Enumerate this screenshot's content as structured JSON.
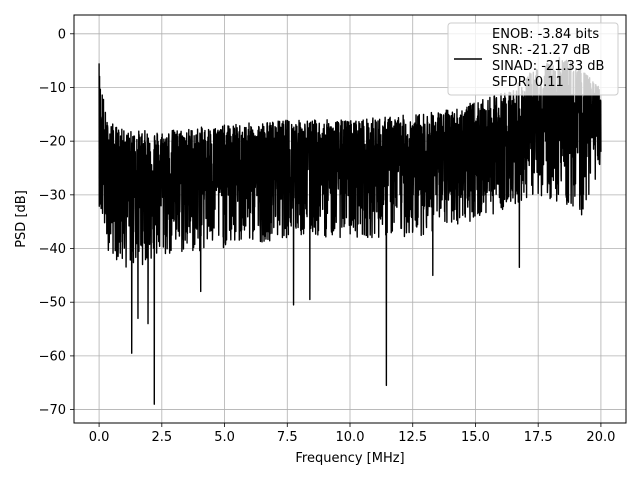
{
  "chart_data": {
    "type": "line",
    "xlabel": "Frequency [MHz]",
    "ylabel": "PSD [dB]",
    "xlim": [
      -1.0,
      21.0
    ],
    "ylim": [
      -72.5,
      3.5
    ],
    "xticks": [
      0.0,
      2.5,
      5.0,
      7.5,
      10.0,
      12.5,
      15.0,
      17.5,
      20.0
    ],
    "xtick_labels": [
      "0.0",
      "2.5",
      "5.0",
      "7.5",
      "10.0",
      "12.5",
      "15.0",
      "17.5",
      "20.0"
    ],
    "yticks": [
      0,
      -10,
      -20,
      -30,
      -40,
      -50,
      -60,
      -70
    ],
    "ytick_labels": [
      "0",
      "−10",
      "−20",
      "−30",
      "−40",
      "−50",
      "−60",
      "−70"
    ],
    "grid": true,
    "legend_position": "top-right",
    "series": [
      {
        "color": "#000000",
        "x_range": [
          0.0,
          20.0
        ],
        "envelope": [
          {
            "x": 0.0,
            "upper": -5.5,
            "lower": -32,
            "typical": -25
          },
          {
            "x": 0.3,
            "upper": -16,
            "lower": -40,
            "typical": -25
          },
          {
            "x": 1.0,
            "upper": -18,
            "lower": -44,
            "typical": -26
          },
          {
            "x": 2.5,
            "upper": -18,
            "lower": -42,
            "typical": -26
          },
          {
            "x": 5.0,
            "upper": -17,
            "lower": -40,
            "typical": -25
          },
          {
            "x": 7.5,
            "upper": -16,
            "lower": -38,
            "typical": -24
          },
          {
            "x": 10.0,
            "upper": -16,
            "lower": -38,
            "typical": -24
          },
          {
            "x": 12.5,
            "upper": -15,
            "lower": -38,
            "typical": -24
          },
          {
            "x": 14.0,
            "upper": -14,
            "lower": -36,
            "typical": -23
          },
          {
            "x": 15.5,
            "upper": -12,
            "lower": -34,
            "typical": -22
          },
          {
            "x": 16.5,
            "upper": -10,
            "lower": -32,
            "typical": -20
          },
          {
            "x": 17.5,
            "upper": -6,
            "lower": -30,
            "typical": -18
          },
          {
            "x": 18.5,
            "upper": -4,
            "lower": -32,
            "typical": -16
          },
          {
            "x": 19.3,
            "upper": -7,
            "lower": -34,
            "typical": -17
          },
          {
            "x": 20.0,
            "upper": -10,
            "lower": -24,
            "typical": -16
          }
        ],
        "notable_dips": [
          {
            "x": 1.3,
            "y": -59.5
          },
          {
            "x": 1.55,
            "y": -53
          },
          {
            "x": 1.95,
            "y": -54
          },
          {
            "x": 2.2,
            "y": -69
          },
          {
            "x": 4.05,
            "y": -48
          },
          {
            "x": 7.75,
            "y": -50.5
          },
          {
            "x": 8.4,
            "y": -49.5
          },
          {
            "x": 11.45,
            "y": -65.5
          },
          {
            "x": 13.3,
            "y": -45
          },
          {
            "x": 16.75,
            "y": -43.5
          }
        ]
      }
    ],
    "legend": {
      "lines": [
        "ENOB: -3.84 bits",
        "SNR: -21.27 dB",
        "SINAD: -21.33 dB",
        "SFDR: 0.11"
      ]
    }
  }
}
